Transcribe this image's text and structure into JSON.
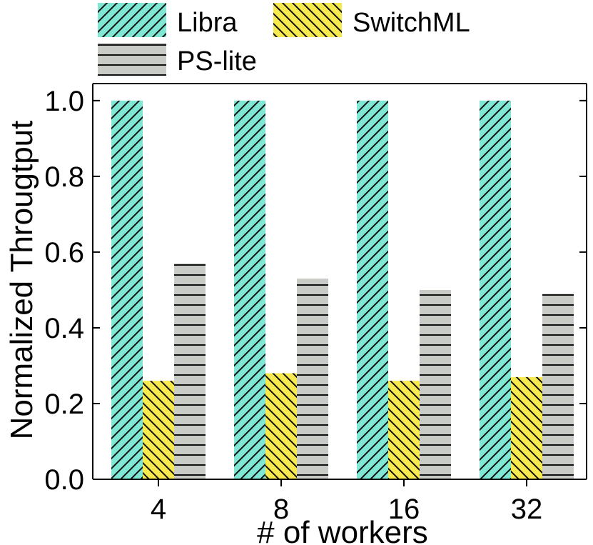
{
  "chart_data": {
    "type": "bar",
    "categories": [
      "4",
      "8",
      "16",
      "32"
    ],
    "series": [
      {
        "name": "Libra",
        "values": [
          1.0,
          1.0,
          1.0,
          1.0
        ],
        "color": "#7fe7d3",
        "pattern": "diagonal-up"
      },
      {
        "name": "SwitchML",
        "values": [
          0.26,
          0.28,
          0.26,
          0.27
        ],
        "color": "#f7ea4f",
        "pattern": "diagonal-down"
      },
      {
        "name": "PS-lite",
        "values": [
          0.57,
          0.53,
          0.5,
          0.49
        ],
        "color": "#c8cbc6",
        "pattern": "horizontal"
      }
    ],
    "xlabel": "# of workers",
    "ylabel": "Normalized Througtput",
    "ylim": [
      0.0,
      1.0
    ],
    "yticks": [
      "0.0",
      "0.2",
      "0.4",
      "0.6",
      "0.8",
      "1.0"
    ],
    "grid": false,
    "legend": "top"
  }
}
